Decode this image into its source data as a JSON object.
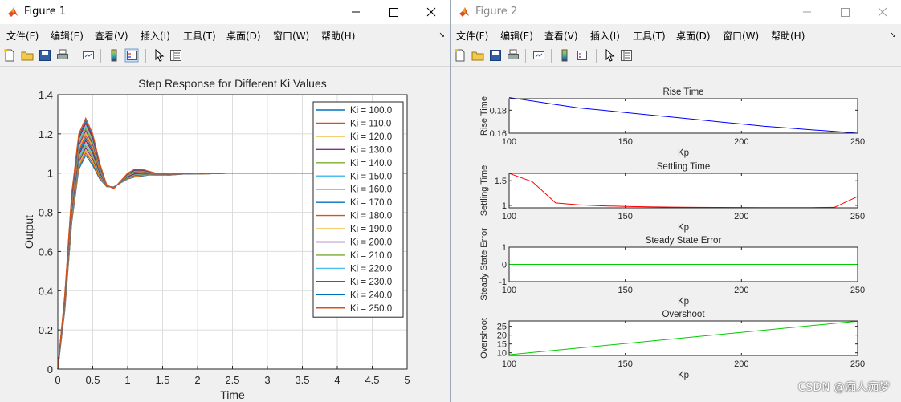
{
  "windows": [
    {
      "title": "Figure 1",
      "menu": [
        "文件(F)",
        "编辑(E)",
        "查看(V)",
        "插入(I)",
        "工具(T)",
        "桌面(D)",
        "窗口(W)",
        "帮助(H)"
      ]
    },
    {
      "title": "Figure 2",
      "menu": [
        "文件(F)",
        "编辑(E)",
        "查看(V)",
        "插入(I)",
        "工具(T)",
        "桌面(D)",
        "窗口(W)",
        "帮助(H)"
      ]
    }
  ],
  "toolbar_icons": [
    "new-figure-icon",
    "open-file-icon",
    "save-icon",
    "print-icon",
    "link-plot-icon",
    "colorbar-icon",
    "legend-icon",
    "pointer-icon",
    "property-inspector-icon"
  ],
  "watermark": "CSDN @痴人痴梦",
  "colors": {
    "matlab_palette": [
      "#0072BD",
      "#D95319",
      "#EDB120",
      "#7E2F8E",
      "#77AC30",
      "#4DBEEE",
      "#A2142F"
    ],
    "rise_time_line": "#0000FF",
    "settling_time_line": "#FF0000",
    "sse_line": "#00CC00",
    "overshoot_line": "#00CC00"
  },
  "chart_data": [
    {
      "type": "line",
      "title": "Step Response for Different Ki Values",
      "xlabel": "Time",
      "ylabel": "Output",
      "xlim": [
        0,
        5
      ],
      "ylim": [
        0,
        1.4
      ],
      "xticks": [
        "0",
        "0.5",
        "1",
        "1.5",
        "2",
        "2.5",
        "3",
        "3.5",
        "4",
        "4.5",
        "5"
      ],
      "yticks": [
        "0",
        "0.2",
        "0.4",
        "0.6",
        "0.8",
        "1",
        "1.2",
        "1.4"
      ],
      "grid": true,
      "legend_position": "top-right",
      "series_names": [
        "Ki = 100.0",
        "Ki = 110.0",
        "Ki = 120.0",
        "Ki = 130.0",
        "Ki = 140.0",
        "Ki = 150.0",
        "Ki = 160.0",
        "Ki = 170.0",
        "Ki = 180.0",
        "Ki = 190.0",
        "Ki = 200.0",
        "Ki = 210.0",
        "Ki = 220.0",
        "Ki = 230.0",
        "Ki = 240.0",
        "Ki = 250.0"
      ],
      "x": [
        0,
        0.1,
        0.2,
        0.3,
        0.4,
        0.5,
        0.6,
        0.7,
        0.8,
        0.9,
        1.0,
        1.1,
        1.2,
        1.3,
        1.4,
        1.5,
        1.6,
        1.8,
        2.0,
        2.5,
        3.0,
        3.5,
        4.0,
        4.5,
        5.0
      ],
      "series_first": [
        0,
        0.3,
        0.75,
        1.02,
        1.09,
        1.04,
        0.97,
        0.93,
        0.93,
        0.95,
        0.97,
        0.98,
        0.985,
        0.99,
        0.99,
        0.99,
        0.99,
        0.995,
        0.995,
        1.0,
        1.0,
        1.0,
        1.0,
        1.0,
        1.0
      ],
      "series_last": [
        0,
        0.38,
        0.9,
        1.2,
        1.28,
        1.2,
        1.05,
        0.94,
        0.92,
        0.96,
        1.0,
        1.02,
        1.02,
        1.01,
        1.0,
        1.0,
        0.995,
        0.998,
        1.0,
        1.0,
        1.0,
        1.0,
        1.0,
        1.0,
        1.0
      ]
    },
    {
      "type": "line",
      "title": "Rise Time",
      "xlabel": "Kp",
      "ylabel": "Rise Time",
      "xlim": [
        100,
        250
      ],
      "ylim": [
        0.16,
        0.19
      ],
      "xticks": [
        "100",
        "150",
        "200",
        "250"
      ],
      "yticks": [
        "0.16",
        "0.18"
      ],
      "x": [
        100,
        110,
        120,
        130,
        140,
        150,
        160,
        170,
        180,
        190,
        200,
        210,
        220,
        230,
        240,
        250
      ],
      "y": [
        0.191,
        0.188,
        0.185,
        0.182,
        0.18,
        0.178,
        0.176,
        0.174,
        0.172,
        0.17,
        0.168,
        0.166,
        0.1645,
        0.163,
        0.1615,
        0.16
      ]
    },
    {
      "type": "line",
      "title": "Settling Time",
      "xlabel": "Kp",
      "ylabel": "Settling Time",
      "xlim": [
        100,
        250
      ],
      "ylim": [
        0.95,
        1.65
      ],
      "xticks": [
        "100",
        "150",
        "200",
        "250"
      ],
      "yticks": [
        "1",
        "1.5"
      ],
      "x": [
        100,
        110,
        120,
        130,
        140,
        150,
        160,
        170,
        180,
        190,
        200,
        210,
        220,
        230,
        240,
        250
      ],
      "y": [
        1.65,
        1.48,
        1.05,
        1.01,
        0.99,
        0.98,
        0.97,
        0.965,
        0.96,
        0.958,
        0.956,
        0.955,
        0.955,
        0.955,
        0.96,
        1.18
      ]
    },
    {
      "type": "line",
      "title": "Steady State Error",
      "xlabel": "Kp",
      "ylabel": "Steady State Error",
      "xlim": [
        100,
        250
      ],
      "ylim": [
        -1,
        1
      ],
      "xticks": [
        "100",
        "150",
        "200",
        "250"
      ],
      "yticks": [
        "-1",
        "0",
        "1"
      ],
      "x": [
        100,
        250
      ],
      "y": [
        0,
        0
      ]
    },
    {
      "type": "line",
      "title": "Overshoot",
      "xlabel": "Kp",
      "ylabel": "Overshoot",
      "xlim": [
        100,
        250
      ],
      "ylim": [
        8.5,
        28
      ],
      "xticks": [
        "100",
        "150",
        "200",
        "250"
      ],
      "yticks": [
        "10",
        "15",
        "20",
        "25"
      ],
      "x": [
        100,
        250
      ],
      "y": [
        8.9,
        27.9
      ]
    }
  ]
}
